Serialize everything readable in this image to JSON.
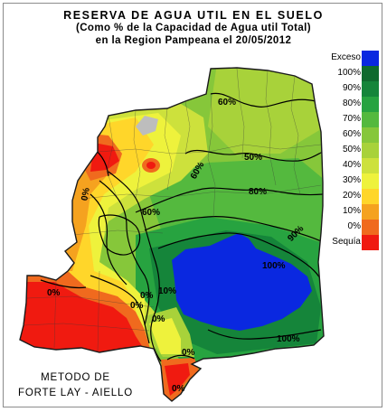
{
  "header": {
    "title": "RESERVA DE AGUA UTIL EN EL SUELO",
    "subtitle": "(Como % de la Capacidad de Agua util Total)",
    "region_date": "en la Region Pampeana el 20/05/2012"
  },
  "legend": {
    "items": [
      {
        "label": "Exceso",
        "color": "#0a28e0"
      },
      {
        "label": "100%",
        "color": "#0f6a2e"
      },
      {
        "label": "90%",
        "color": "#15853a"
      },
      {
        "label": "80%",
        "color": "#27a340"
      },
      {
        "label": "70%",
        "color": "#54b93e"
      },
      {
        "label": "60%",
        "color": "#86c73a"
      },
      {
        "label": "50%",
        "color": "#a8d23a"
      },
      {
        "label": "40%",
        "color": "#cde13c"
      },
      {
        "label": "30%",
        "color": "#eef23c"
      },
      {
        "label": "20%",
        "color": "#ffd62a"
      },
      {
        "label": "10%",
        "color": "#f5a21f"
      },
      {
        "label": "0%",
        "color": "#f06a1e"
      },
      {
        "label": "Sequía",
        "color": "#f01a10"
      }
    ]
  },
  "map": {
    "contour_labels": [
      "60%",
      "50%",
      "60%",
      "80%",
      "60%",
      "90%",
      "100%",
      "100%",
      "10%",
      "0%",
      "0%",
      "0%",
      "0%",
      "0%",
      "0%",
      "0%"
    ]
  },
  "footer": {
    "method_line1": "METODO DE",
    "method_line2": "FORTE LAY - AIELLO"
  }
}
